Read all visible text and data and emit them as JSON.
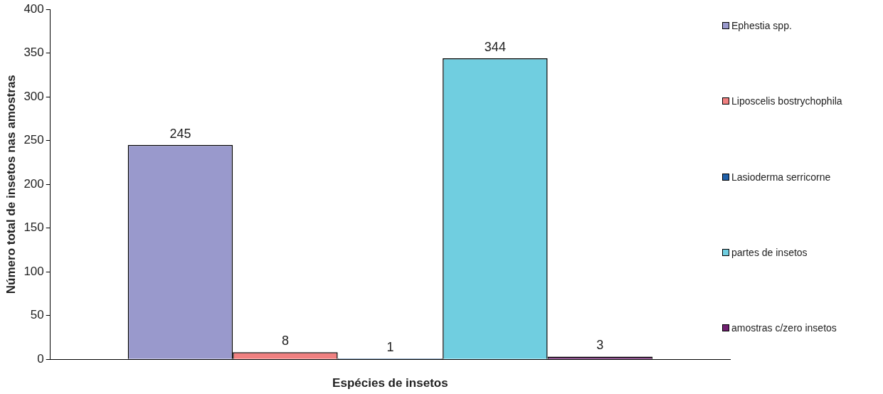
{
  "chart_data": {
    "type": "bar",
    "xlabel": "Espécies de insetos",
    "ylabel": "Número total de insetos nas amostras",
    "categories": [
      null
    ],
    "series": [
      {
        "name": "Ephestia spp.",
        "color": "#9999cc",
        "values": [
          245
        ]
      },
      {
        "name": "Liposcelis bostrychophila",
        "color": "#f08080",
        "values": [
          8
        ]
      },
      {
        "name": "Lasioderma serricorne",
        "color": "#2060a8",
        "values": [
          1
        ]
      },
      {
        "name": "partes de insetos",
        "color": "#70cee0",
        "values": [
          344
        ]
      },
      {
        "name": "amostras c/zero insetos",
        "color": "#702070",
        "values": [
          3
        ]
      }
    ],
    "ylim": [
      0,
      400
    ],
    "yticks": [
      0,
      50,
      100,
      150,
      200,
      250,
      300,
      350,
      400
    ],
    "grid": false,
    "legend": "right",
    "data_labels": true
  }
}
